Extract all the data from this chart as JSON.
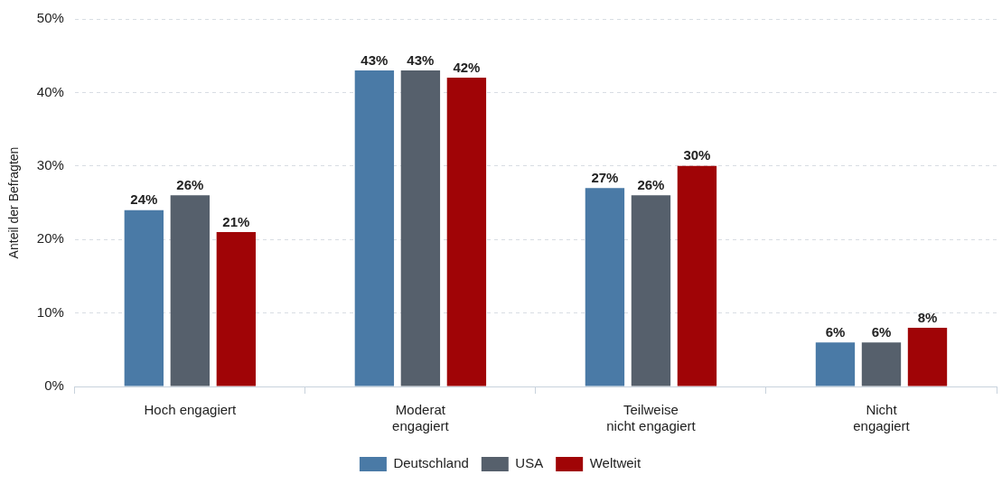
{
  "chart_data": {
    "type": "bar",
    "ylabel": "Anteil der Befragten",
    "categories": [
      "Hoch engagiert",
      "Moderat\nengagiert",
      "Teilweise\nnicht engagiert",
      "Nicht\nengagiert"
    ],
    "series": [
      {
        "name": "Deutschland",
        "color": "#4a7aa6",
        "values": [
          24,
          43,
          27,
          6
        ],
        "value_labels": [
          "24%",
          "43%",
          "27%",
          "6%"
        ]
      },
      {
        "name": "USA",
        "color": "#56606c",
        "values": [
          26,
          43,
          26,
          6
        ],
        "value_labels": [
          "26%",
          "43%",
          "26%",
          "6%"
        ]
      },
      {
        "name": "Weltweit",
        "color": "#a00406",
        "values": [
          21,
          42,
          30,
          8
        ],
        "value_labels": [
          "21%",
          "42%",
          "30%",
          "8%"
        ]
      }
    ],
    "ylim": [
      0,
      50
    ],
    "yticks": [
      {
        "value": 0,
        "label": "0%"
      },
      {
        "value": 10,
        "label": "10%"
      },
      {
        "value": 20,
        "label": "20%"
      },
      {
        "value": 30,
        "label": "30%"
      },
      {
        "value": 40,
        "label": "40%"
      },
      {
        "value": 50,
        "label": "50%"
      }
    ],
    "grid": "y",
    "legend": "bottom"
  }
}
